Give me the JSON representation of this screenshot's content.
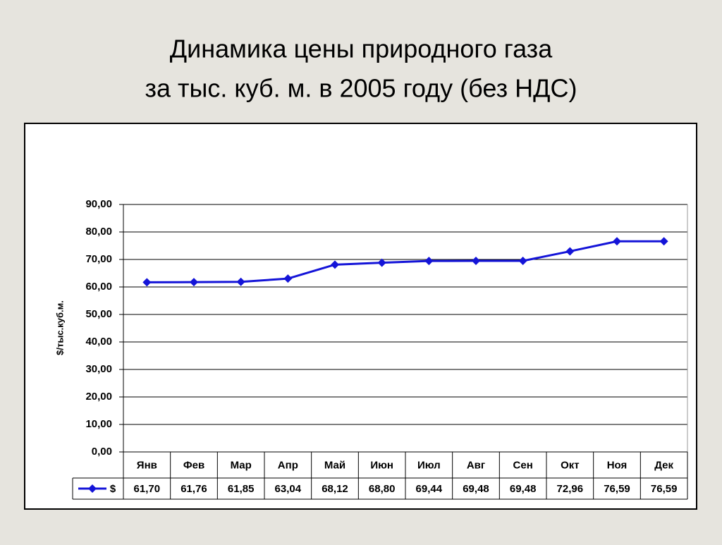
{
  "chart_data": {
    "type": "line",
    "title": [
      "Динамика цены  природного газа",
      "за тыс. куб. м. в  2005 году (без НДС)"
    ],
    "y_label": "$/тыс.куб.м.",
    "categories": [
      "Янв",
      "Фев",
      "Мар",
      "Апр",
      "Май",
      "Июн",
      "Июл",
      "Авг",
      "Сен",
      "Окт",
      "Ноя",
      "Дек"
    ],
    "series": [
      {
        "name": "$",
        "color": "#1414d8",
        "values": [
          61.7,
          61.76,
          61.85,
          63.04,
          68.12,
          68.8,
          69.44,
          69.48,
          69.48,
          72.96,
          76.59,
          76.59
        ],
        "value_labels": [
          "61,70",
          "61,76",
          "61,85",
          "63,04",
          "68,12",
          "68,80",
          "69,44",
          "69,48",
          "69,48",
          "72,96",
          "76,59",
          "76,59"
        ]
      }
    ],
    "ylim": [
      0,
      90
    ],
    "yticks": [
      {
        "value": 0,
        "label": "0,00"
      },
      {
        "value": 10,
        "label": "10,00"
      },
      {
        "value": 20,
        "label": "20,00"
      },
      {
        "value": 30,
        "label": "30,00"
      },
      {
        "value": 40,
        "label": "40,00"
      },
      {
        "value": 50,
        "label": "50,00"
      },
      {
        "value": 60,
        "label": "60,00"
      },
      {
        "value": 70,
        "label": "70,00"
      },
      {
        "value": 80,
        "label": "80,00"
      },
      {
        "value": 90,
        "label": "90,00"
      }
    ],
    "grid": true,
    "data_table": true
  }
}
